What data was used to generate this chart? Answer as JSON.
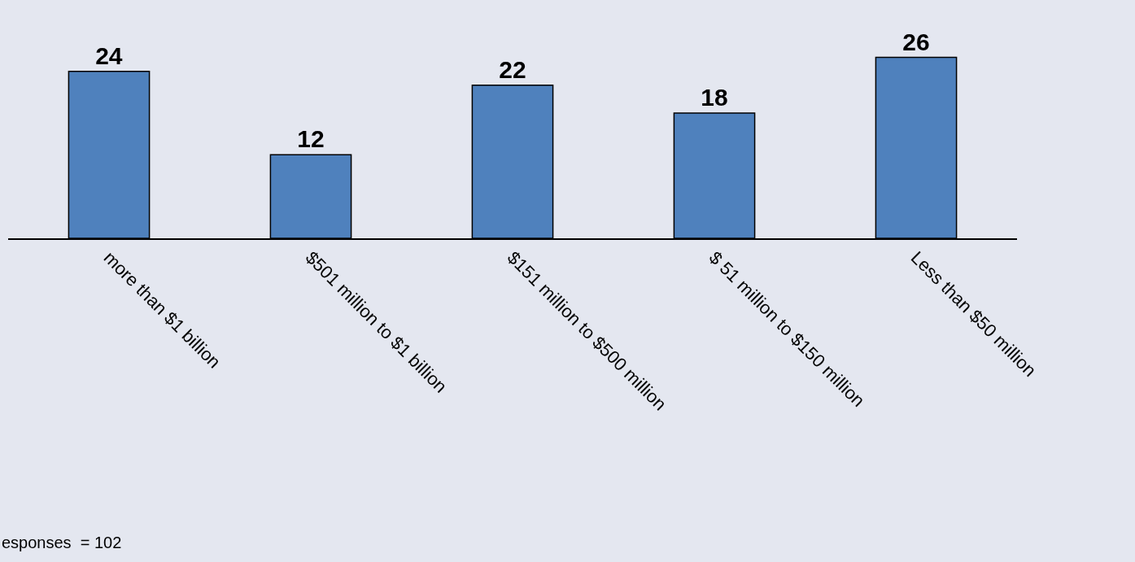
{
  "chart_data": {
    "type": "bar",
    "categories": [
      "more than $1 billion",
      "$501 million to $1 billion",
      "$151 million to $500 million",
      "$ 51 million to $150 million",
      "Less than $50 million"
    ],
    "values": [
      24,
      12,
      22,
      18,
      26
    ],
    "color": "#4f81bd",
    "data_labels": true,
    "tick_labels": "x",
    "grid": false,
    "legend": false,
    "annotations": [
      "esponses  = 102"
    ]
  }
}
